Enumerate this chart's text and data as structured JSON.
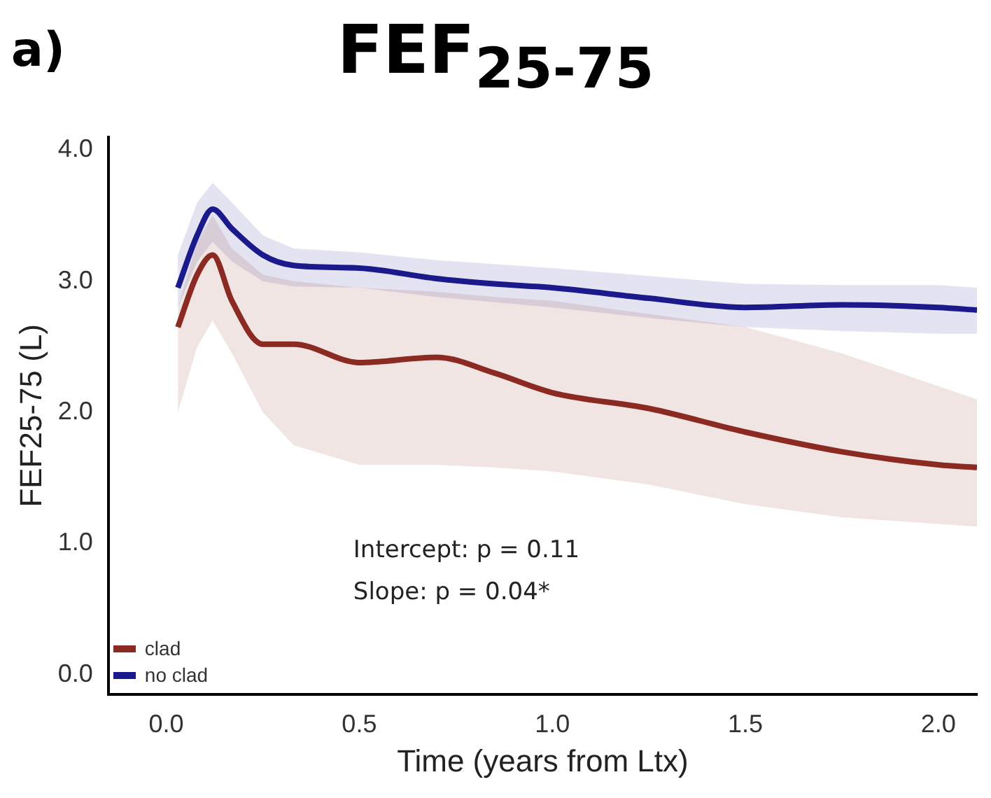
{
  "chart_data": {
    "type": "line",
    "title": "FEF$_{25-75}$",
    "xlabel": "Time (years from Ltx)",
    "ylabel": "FEF25-75 (L)",
    "annotations": [
      "a)",
      "Intercept: p = 0.11",
      "Slope: p = 0.04*"
    ],
    "x": [
      0.03,
      0.08,
      0.12,
      0.17,
      0.25,
      0.33,
      0.5,
      0.7,
      0.85,
      1.0,
      1.25,
      1.5,
      1.75,
      2.0,
      2.1
    ],
    "series": [
      {
        "name": "clad",
        "color": "#8b2a22",
        "values": [
          2.65,
          3.05,
          3.2,
          2.85,
          2.52,
          2.52,
          2.38,
          2.42,
          2.3,
          2.15,
          2.03,
          1.85,
          1.7,
          1.6,
          1.58
        ],
        "lower": [
          2.0,
          2.5,
          2.7,
          2.45,
          2.0,
          1.75,
          1.6,
          1.6,
          1.58,
          1.55,
          1.45,
          1.3,
          1.2,
          1.15,
          1.13
        ],
        "upper": [
          2.8,
          3.3,
          3.5,
          3.25,
          3.05,
          3.0,
          2.95,
          2.92,
          2.88,
          2.85,
          2.75,
          2.65,
          2.45,
          2.2,
          2.1
        ]
      },
      {
        "name": "no clad",
        "color": "#1a1a8c",
        "values": [
          2.95,
          3.35,
          3.55,
          3.4,
          3.2,
          3.12,
          3.1,
          3.02,
          2.98,
          2.95,
          2.87,
          2.8,
          2.82,
          2.8,
          2.78
        ],
        "lower": [
          2.8,
          3.15,
          3.3,
          3.15,
          3.0,
          2.96,
          2.95,
          2.88,
          2.84,
          2.8,
          2.72,
          2.65,
          2.62,
          2.6,
          2.6
        ],
        "upper": [
          3.2,
          3.6,
          3.75,
          3.6,
          3.35,
          3.25,
          3.22,
          3.16,
          3.13,
          3.1,
          3.04,
          2.98,
          2.97,
          2.97,
          2.95
        ]
      }
    ],
    "xlim": [
      -0.15,
      2.1
    ],
    "xticks": [
      {
        "value": 0,
        "label": "0.0"
      },
      {
        "value": 0.5,
        "label": "0.5"
      },
      {
        "value": 1,
        "label": "1.0"
      },
      {
        "value": 1.5,
        "label": "1.5"
      },
      {
        "value": 2,
        "label": "2.0"
      }
    ],
    "ylim": [
      -0.15,
      4.1
    ],
    "yticks": [
      {
        "value": 0,
        "label": "0.0"
      },
      {
        "value": 1,
        "label": "1.0"
      },
      {
        "value": 2,
        "label": "2.0"
      },
      {
        "value": 3,
        "label": "3.0"
      },
      {
        "value": 4,
        "label": "4.0"
      }
    ],
    "grid": false,
    "legend": "bottom left",
    "marker": "none",
    "line_style": "solid"
  }
}
